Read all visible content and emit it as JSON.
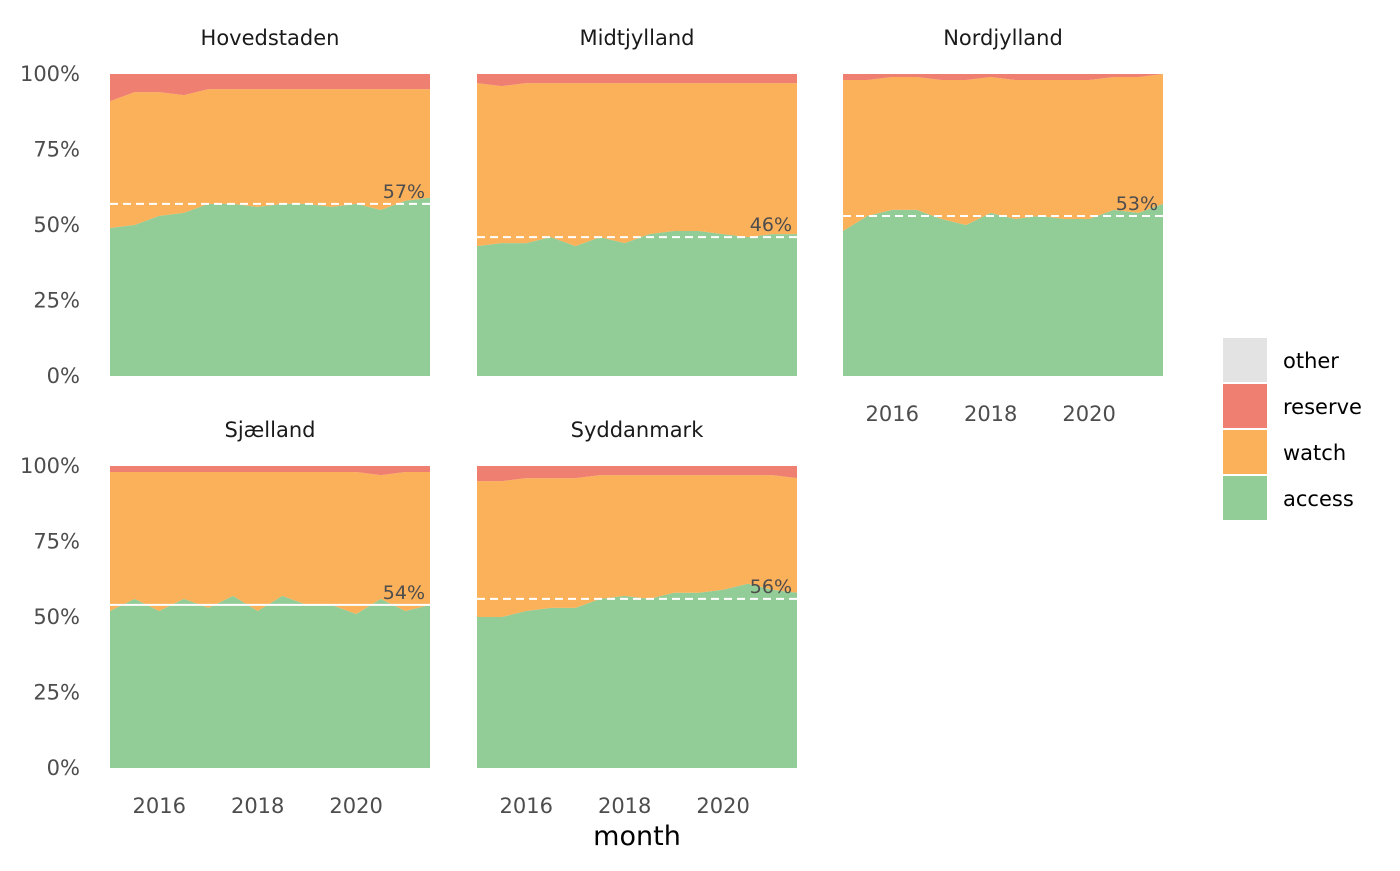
{
  "chart_data": {
    "type": "area",
    "xlabel": "month",
    "ylabel": "",
    "ylim": [
      0,
      1
    ],
    "y_ticks": [
      "0%",
      "25%",
      "50%",
      "75%",
      "100%"
    ],
    "x_ticks": [
      "2016",
      "2018",
      "2020"
    ],
    "x_range": [
      2015.0,
      2021.5
    ],
    "legend": {
      "placement": "right",
      "items": [
        {
          "key": "other",
          "label": "other",
          "color": "#e3e3e3"
        },
        {
          "key": "reserve",
          "label": "reserve",
          "color": "#ef7f71"
        },
        {
          "key": "watch",
          "label": "watch",
          "color": "#fbb05a"
        },
        {
          "key": "access",
          "label": "access",
          "color": "#92cc96"
        }
      ]
    },
    "panels": [
      {
        "title": "Hovedstaden",
        "reference_value": 0.57,
        "reference_label": "57%",
        "reference_dashed": true,
        "x": [
          2015.0,
          2015.5,
          2016.0,
          2016.5,
          2017.0,
          2017.5,
          2018.0,
          2018.5,
          2019.0,
          2019.5,
          2020.0,
          2020.5,
          2021.0,
          2021.5
        ],
        "access": [
          0.49,
          0.5,
          0.53,
          0.54,
          0.57,
          0.57,
          0.56,
          0.57,
          0.57,
          0.56,
          0.57,
          0.55,
          0.58,
          0.59
        ],
        "watch": [
          0.42,
          0.44,
          0.41,
          0.39,
          0.38,
          0.38,
          0.39,
          0.38,
          0.38,
          0.39,
          0.38,
          0.4,
          0.37,
          0.36
        ],
        "reserve": [
          0.09,
          0.06,
          0.06,
          0.07,
          0.05,
          0.05,
          0.05,
          0.05,
          0.05,
          0.05,
          0.05,
          0.05,
          0.05,
          0.05
        ],
        "other": [
          0,
          0,
          0,
          0,
          0,
          0,
          0,
          0,
          0,
          0,
          0,
          0,
          0,
          0
        ]
      },
      {
        "title": "Midtjylland",
        "reference_value": 0.46,
        "reference_label": "46%",
        "reference_dashed": true,
        "x": [
          2015.0,
          2015.5,
          2016.0,
          2016.5,
          2017.0,
          2017.5,
          2018.0,
          2018.5,
          2019.0,
          2019.5,
          2020.0,
          2020.5,
          2021.0,
          2021.5
        ],
        "access": [
          0.43,
          0.44,
          0.44,
          0.46,
          0.43,
          0.46,
          0.44,
          0.47,
          0.48,
          0.48,
          0.47,
          0.46,
          0.47,
          0.47
        ],
        "watch": [
          0.54,
          0.52,
          0.53,
          0.51,
          0.54,
          0.51,
          0.53,
          0.5,
          0.49,
          0.49,
          0.5,
          0.51,
          0.5,
          0.5
        ],
        "reserve": [
          0.03,
          0.04,
          0.03,
          0.03,
          0.03,
          0.03,
          0.03,
          0.03,
          0.03,
          0.03,
          0.03,
          0.03,
          0.03,
          0.03
        ],
        "other": [
          0,
          0,
          0,
          0,
          0,
          0,
          0,
          0,
          0,
          0,
          0,
          0,
          0,
          0
        ]
      },
      {
        "title": "Nordjylland",
        "reference_value": 0.53,
        "reference_label": "53%",
        "reference_dashed": true,
        "x": [
          2015.0,
          2015.5,
          2016.0,
          2016.5,
          2017.0,
          2017.5,
          2018.0,
          2018.5,
          2019.0,
          2019.5,
          2020.0,
          2020.5,
          2021.0,
          2021.5
        ],
        "access": [
          0.48,
          0.53,
          0.55,
          0.55,
          0.52,
          0.5,
          0.54,
          0.52,
          0.53,
          0.52,
          0.52,
          0.55,
          0.54,
          0.57
        ],
        "watch": [
          0.5,
          0.45,
          0.44,
          0.44,
          0.46,
          0.48,
          0.45,
          0.46,
          0.45,
          0.46,
          0.46,
          0.44,
          0.45,
          0.43
        ],
        "reserve": [
          0.02,
          0.02,
          0.01,
          0.01,
          0.02,
          0.02,
          0.01,
          0.02,
          0.02,
          0.02,
          0.02,
          0.01,
          0.01,
          0.0
        ],
        "other": [
          0,
          0,
          0,
          0,
          0,
          0,
          0,
          0,
          0,
          0,
          0,
          0,
          0,
          0
        ]
      },
      {
        "title": "Sjælland",
        "reference_value": 0.54,
        "reference_label": "54%",
        "reference_dashed": false,
        "x": [
          2015.0,
          2015.5,
          2016.0,
          2016.5,
          2017.0,
          2017.5,
          2018.0,
          2018.5,
          2019.0,
          2019.5,
          2020.0,
          2020.5,
          2021.0,
          2021.5
        ],
        "access": [
          0.52,
          0.56,
          0.52,
          0.56,
          0.53,
          0.57,
          0.52,
          0.57,
          0.54,
          0.54,
          0.51,
          0.56,
          0.52,
          0.54
        ],
        "watch": [
          0.46,
          0.42,
          0.46,
          0.42,
          0.45,
          0.41,
          0.46,
          0.41,
          0.44,
          0.44,
          0.47,
          0.41,
          0.46,
          0.44
        ],
        "reserve": [
          0.02,
          0.02,
          0.02,
          0.02,
          0.02,
          0.02,
          0.02,
          0.02,
          0.02,
          0.02,
          0.02,
          0.03,
          0.02,
          0.02
        ],
        "other": [
          0,
          0,
          0,
          0,
          0,
          0,
          0,
          0,
          0,
          0,
          0,
          0,
          0,
          0
        ]
      },
      {
        "title": "Syddanmark",
        "reference_value": 0.56,
        "reference_label": "56%",
        "reference_dashed": true,
        "x": [
          2015.0,
          2015.5,
          2016.0,
          2016.5,
          2017.0,
          2017.5,
          2018.0,
          2018.5,
          2019.0,
          2019.5,
          2020.0,
          2020.5,
          2021.0,
          2021.5
        ],
        "access": [
          0.5,
          0.5,
          0.52,
          0.53,
          0.53,
          0.56,
          0.57,
          0.56,
          0.58,
          0.58,
          0.59,
          0.61,
          0.59,
          0.58
        ],
        "watch": [
          0.45,
          0.45,
          0.44,
          0.43,
          0.43,
          0.41,
          0.4,
          0.41,
          0.39,
          0.39,
          0.38,
          0.36,
          0.38,
          0.38
        ],
        "reserve": [
          0.05,
          0.05,
          0.04,
          0.04,
          0.04,
          0.03,
          0.03,
          0.03,
          0.03,
          0.03,
          0.03,
          0.03,
          0.03,
          0.04
        ],
        "other": [
          0,
          0,
          0,
          0,
          0,
          0,
          0,
          0,
          0,
          0,
          0,
          0,
          0,
          0
        ]
      }
    ]
  }
}
